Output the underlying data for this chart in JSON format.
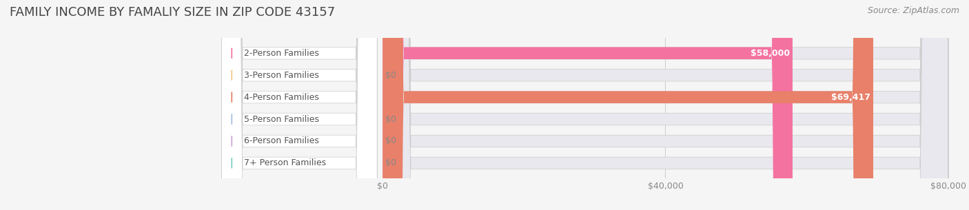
{
  "title": "FAMILY INCOME BY FAMALIY SIZE IN ZIP CODE 43157",
  "source": "Source: ZipAtlas.com",
  "categories": [
    "2-Person Families",
    "3-Person Families",
    "4-Person Families",
    "5-Person Families",
    "6-Person Families",
    "7+ Person Families"
  ],
  "values": [
    58000,
    0,
    69417,
    0,
    0,
    0
  ],
  "bar_colors": [
    "#f472a0",
    "#f5c98a",
    "#e8806a",
    "#a8bfe0",
    "#c9a8d4",
    "#7ecfc4"
  ],
  "value_labels": [
    "$58,000",
    "$0",
    "$69,417",
    "$0",
    "$0",
    "$0"
  ],
  "xlim": [
    0,
    80000
  ],
  "xticks": [
    0,
    40000,
    80000
  ],
  "xtick_labels": [
    "$0",
    "$40,000",
    "$80,000"
  ],
  "background_color": "#f5f5f5",
  "bar_background_color": "#e8e8e8",
  "title_fontsize": 13,
  "label_fontsize": 9,
  "value_fontsize": 9,
  "source_fontsize": 9,
  "bar_height": 0.55,
  "title_color": "#444444",
  "label_color": "#555555",
  "source_color": "#888888",
  "tick_color": "#888888"
}
